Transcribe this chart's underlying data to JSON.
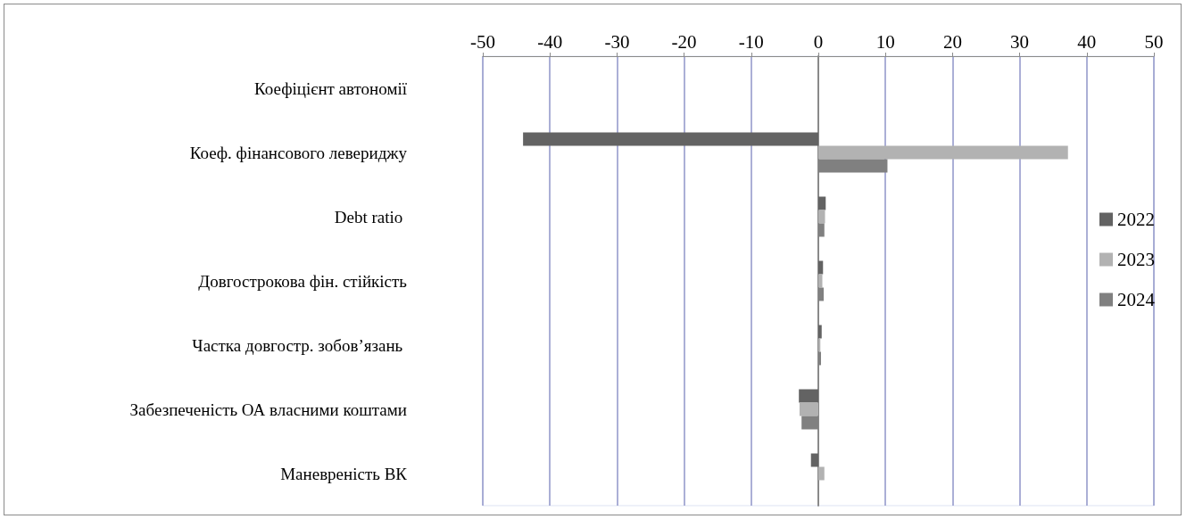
{
  "chart_data": {
    "type": "bar",
    "orientation": "horizontal",
    "categories": [
      "Коефіцієнт автономії",
      "Коеф. фінансового левериджу",
      "Debt ratio ",
      "Довгострокова фін. стійкість",
      "Частка довгостр. зобов’язань ",
      "Забезпеченість ОА власними коштами",
      "Маневреність ВК"
    ],
    "series": [
      {
        "name": "2022",
        "color": "#636363",
        "values": [
          0,
          -44,
          1.1,
          0.7,
          0.5,
          -2.9,
          -1.1
        ]
      },
      {
        "name": "2023",
        "color": "#b2b2b2",
        "values": [
          0,
          37.2,
          1.0,
          0.6,
          0.3,
          -2.8,
          0.9
        ]
      },
      {
        "name": "2024",
        "color": "#808080",
        "values": [
          0,
          10.3,
          0.9,
          0.8,
          0.4,
          -2.5,
          0
        ]
      }
    ],
    "xlim": [
      -50,
      50
    ],
    "xticks": [
      -50,
      -40,
      -30,
      -20,
      -10,
      0,
      10,
      20,
      30,
      40,
      50
    ],
    "grid": "x",
    "legend": "right"
  }
}
